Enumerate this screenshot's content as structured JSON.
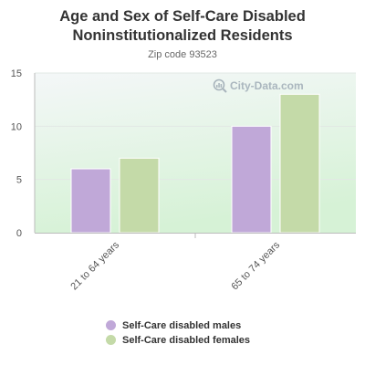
{
  "chart_data": {
    "type": "bar",
    "title": "Age and Sex of Self-Care Disabled Noninstitutionalized Residents",
    "subtitle": "Zip code 93523",
    "categories": [
      "21 to 64 years",
      "65 to 74 years"
    ],
    "series": [
      {
        "name": "Self-Care disabled males",
        "values": [
          6,
          10
        ],
        "color": "#c0a8d8"
      },
      {
        "name": "Self-Care disabled females",
        "values": [
          7,
          13
        ],
        "color": "#c4daa8"
      }
    ],
    "yticks": [
      0,
      5,
      10,
      15
    ],
    "ylim": [
      0,
      15
    ],
    "xlabel": "",
    "ylabel": "",
    "grid": true,
    "legend": "bottom"
  },
  "watermark": "City-Data.com",
  "watermark_icon": "magnifier-chart-icon"
}
